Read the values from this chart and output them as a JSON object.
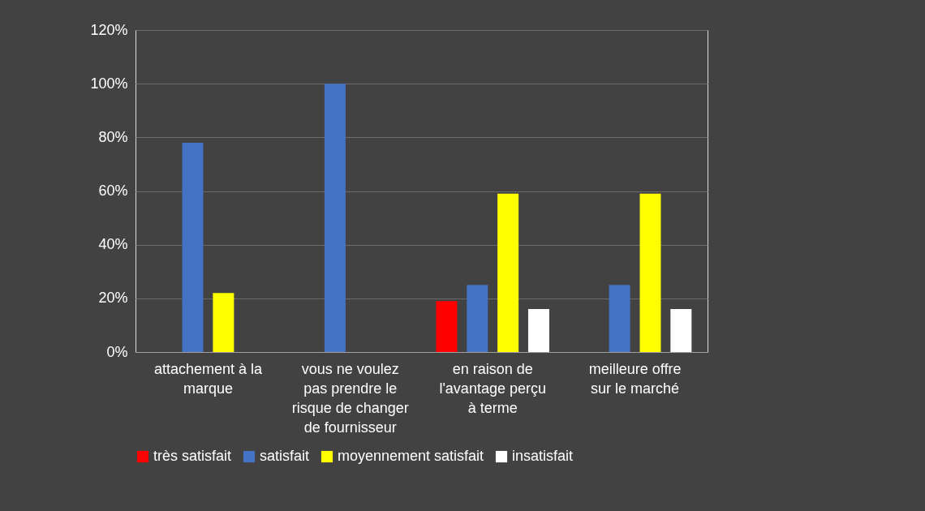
{
  "chart_data": {
    "type": "bar",
    "categories": [
      "attachement à la marque",
      "vous ne voulez pas prendre le risque de changer de fournisseur",
      "en raison de l'avantage perçu à terme",
      "meilleure offre sur le marché"
    ],
    "series": [
      {
        "name": "très satisfait",
        "color": "#ff0000",
        "values": [
          null,
          null,
          0.19,
          null
        ]
      },
      {
        "name": "satisfait",
        "color": "#4472c4",
        "values": [
          0.78,
          1.0,
          0.25,
          0.25
        ]
      },
      {
        "name": "moyennement satisfait",
        "color": "#ffff00",
        "values": [
          0.22,
          null,
          0.59,
          0.59
        ]
      },
      {
        "name": "insatisfait",
        "color": "#ffffff",
        "values": [
          null,
          null,
          0.16,
          0.16
        ]
      }
    ],
    "ylim": [
      0,
      1.2
    ],
    "yticks": [
      {
        "value": 0,
        "label": "0%"
      },
      {
        "value": 0.2,
        "label": "20%"
      },
      {
        "value": 0.4,
        "label": "40%"
      },
      {
        "value": 0.6,
        "label": "60%"
      },
      {
        "value": 0.8,
        "label": "80%"
      },
      {
        "value": 1.0,
        "label": "100%"
      },
      {
        "value": 1.2,
        "label": "120%"
      }
    ],
    "grid": "y",
    "legend": "bottom"
  }
}
